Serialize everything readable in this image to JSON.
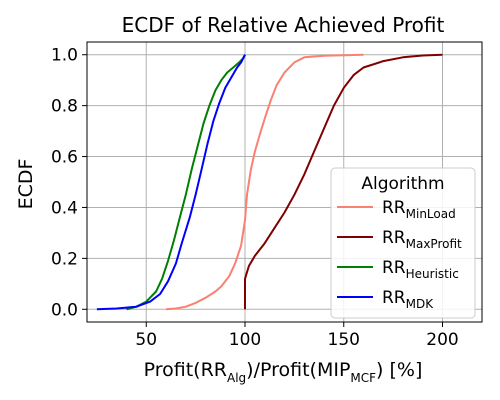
{
  "chart_data": {
    "type": "line",
    "title": "ECDF of Relative Achieved Profit",
    "xlabel": {
      "main": "Profit(RR",
      "sub1": "Alg",
      "mid": ")/Profit(MIP",
      "sub2": "MCF",
      "end": ") [%]"
    },
    "ylabel": "ECDF",
    "xlim": [
      20,
      220
    ],
    "ylim": [
      -0.05,
      1.05
    ],
    "xticks": [
      50,
      100,
      150,
      200
    ],
    "yticks": [
      0.0,
      0.2,
      0.4,
      0.6,
      0.8,
      1.0
    ],
    "xtick_labels": [
      "50",
      "100",
      "150",
      "200"
    ],
    "ytick_labels": [
      "0.0",
      "0.2",
      "0.4",
      "0.6",
      "0.8",
      "1.0"
    ],
    "grid": true,
    "legend": {
      "title": "Algorithm",
      "placement": "lower-right"
    },
    "series": [
      {
        "name": "RR",
        "subscript": "MinLoad",
        "color": "#fa8072",
        "points": [
          [
            60,
            0
          ],
          [
            65,
            0.003
          ],
          [
            70,
            0.01
          ],
          [
            75,
            0.025
          ],
          [
            80,
            0.045
          ],
          [
            85,
            0.07
          ],
          [
            88,
            0.09
          ],
          [
            92,
            0.13
          ],
          [
            95,
            0.18
          ],
          [
            98,
            0.25
          ],
          [
            100,
            0.35
          ],
          [
            101,
            0.45
          ],
          [
            103,
            0.55
          ],
          [
            105,
            0.62
          ],
          [
            108,
            0.7
          ],
          [
            110,
            0.75
          ],
          [
            113,
            0.82
          ],
          [
            116,
            0.88
          ],
          [
            120,
            0.93
          ],
          [
            125,
            0.97
          ],
          [
            130,
            0.99
          ],
          [
            140,
            0.996
          ],
          [
            150,
            0.998
          ],
          [
            160,
            1.0
          ]
        ]
      },
      {
        "name": "RR",
        "subscript": "MaxProfit",
        "color": "#800000",
        "points": [
          [
            100,
            0
          ],
          [
            100,
            0.12
          ],
          [
            102,
            0.17
          ],
          [
            105,
            0.21
          ],
          [
            110,
            0.26
          ],
          [
            115,
            0.32
          ],
          [
            120,
            0.38
          ],
          [
            125,
            0.45
          ],
          [
            130,
            0.53
          ],
          [
            135,
            0.62
          ],
          [
            140,
            0.71
          ],
          [
            145,
            0.8
          ],
          [
            150,
            0.87
          ],
          [
            155,
            0.92
          ],
          [
            160,
            0.95
          ],
          [
            170,
            0.975
          ],
          [
            180,
            0.99
          ],
          [
            190,
            0.997
          ],
          [
            200,
            1.0
          ]
        ]
      },
      {
        "name": "RR",
        "subscript": "Heuristic",
        "color": "#008000",
        "points": [
          [
            40,
            0
          ],
          [
            45,
            0.01
          ],
          [
            50,
            0.03
          ],
          [
            55,
            0.07
          ],
          [
            58,
            0.12
          ],
          [
            61,
            0.19
          ],
          [
            64,
            0.27
          ],
          [
            67,
            0.36
          ],
          [
            70,
            0.45
          ],
          [
            73,
            0.55
          ],
          [
            76,
            0.64
          ],
          [
            79,
            0.73
          ],
          [
            82,
            0.8
          ],
          [
            85,
            0.86
          ],
          [
            88,
            0.9
          ],
          [
            91,
            0.93
          ],
          [
            94,
            0.95
          ],
          [
            97,
            0.97
          ],
          [
            99,
            0.985
          ],
          [
            100,
            1.0
          ]
        ]
      },
      {
        "name": "RR",
        "subscript": "MDK",
        "color": "#0000ff",
        "points": [
          [
            25,
            0
          ],
          [
            35,
            0.003
          ],
          [
            45,
            0.01
          ],
          [
            52,
            0.03
          ],
          [
            57,
            0.06
          ],
          [
            61,
            0.11
          ],
          [
            65,
            0.18
          ],
          [
            68,
            0.26
          ],
          [
            72,
            0.36
          ],
          [
            75,
            0.45
          ],
          [
            78,
            0.55
          ],
          [
            81,
            0.65
          ],
          [
            84,
            0.74
          ],
          [
            87,
            0.81
          ],
          [
            90,
            0.87
          ],
          [
            93,
            0.91
          ],
          [
            96,
            0.95
          ],
          [
            98,
            0.97
          ],
          [
            100,
            1.0
          ]
        ]
      }
    ]
  }
}
